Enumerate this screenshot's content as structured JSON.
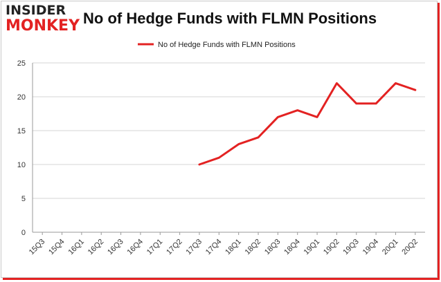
{
  "logo": {
    "line1": "INSIDER",
    "line2": "MONKEY"
  },
  "chart_data": {
    "type": "line",
    "title": "No of Hedge Funds with FLMN Positions",
    "xlabel": "",
    "ylabel": "",
    "categories": [
      "15Q3",
      "15Q4",
      "16Q1",
      "16Q2",
      "16Q3",
      "16Q4",
      "17Q1",
      "17Q2",
      "17Q3",
      "17Q4",
      "18Q1",
      "18Q2",
      "18Q3",
      "18Q4",
      "19Q1",
      "19Q2",
      "19Q3",
      "19Q4",
      "20Q1",
      "20Q2"
    ],
    "series": [
      {
        "name": "No of Hedge Funds with FLMN Positions",
        "values": [
          null,
          null,
          null,
          null,
          null,
          null,
          null,
          null,
          10,
          11,
          13,
          14,
          17,
          18,
          17,
          22,
          19,
          19,
          22,
          21
        ]
      }
    ],
    "ylim": [
      0,
      25
    ],
    "yticks": [
      0,
      5,
      10,
      15,
      20,
      25
    ],
    "grid": true,
    "legend": "top-center",
    "colors": {
      "line": "#e32222",
      "grid": "#d4d4d4",
      "axis": "#999999"
    }
  }
}
